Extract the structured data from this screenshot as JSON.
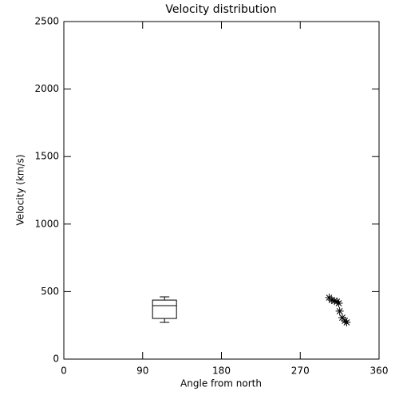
{
  "chart_data": {
    "type": "scatter",
    "title": "Velocity distribution",
    "x_label": "Angle from north",
    "y_label": "Velocity (km/s)",
    "xlim": [
      0,
      360
    ],
    "ylim": [
      0,
      2500
    ],
    "xticks": [
      0,
      90,
      180,
      270,
      360
    ],
    "yticks": [
      0,
      500,
      1000,
      1500,
      2000,
      2500
    ],
    "color": "#000000",
    "box": {
      "x": 115,
      "min": 272,
      "q1": 301,
      "median": 396,
      "q3": 437,
      "max": 461
    },
    "x": [
      303,
      306,
      309,
      312,
      314,
      315,
      318,
      321,
      323
    ],
    "values": [
      455,
      437,
      431,
      426,
      414,
      355,
      307,
      284,
      272
    ]
  }
}
